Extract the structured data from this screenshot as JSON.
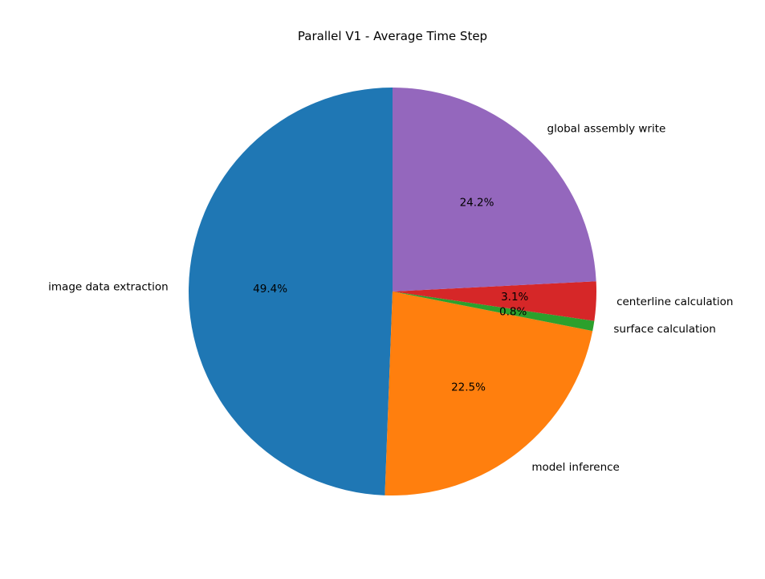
{
  "chart_data": {
    "type": "pie",
    "title": "Parallel V1 - Average Time Step",
    "start_angle_deg": 90,
    "direction": "counterclockwise",
    "slices": [
      {
        "label": "image data extraction",
        "value": 49.4,
        "pct_label": "49.4%",
        "color": "#1f77b4"
      },
      {
        "label": "model inference",
        "value": 22.5,
        "pct_label": "22.5%",
        "color": "#ff7f0e"
      },
      {
        "label": "surface calculation",
        "value": 0.8,
        "pct_label": "0.8%",
        "color": "#2ca02c"
      },
      {
        "label": "centerline calculation",
        "value": 3.1,
        "pct_label": "3.1%",
        "color": "#d62728"
      },
      {
        "label": "global assembly write",
        "value": 24.2,
        "pct_label": "24.2%",
        "color": "#9467bd"
      }
    ]
  }
}
